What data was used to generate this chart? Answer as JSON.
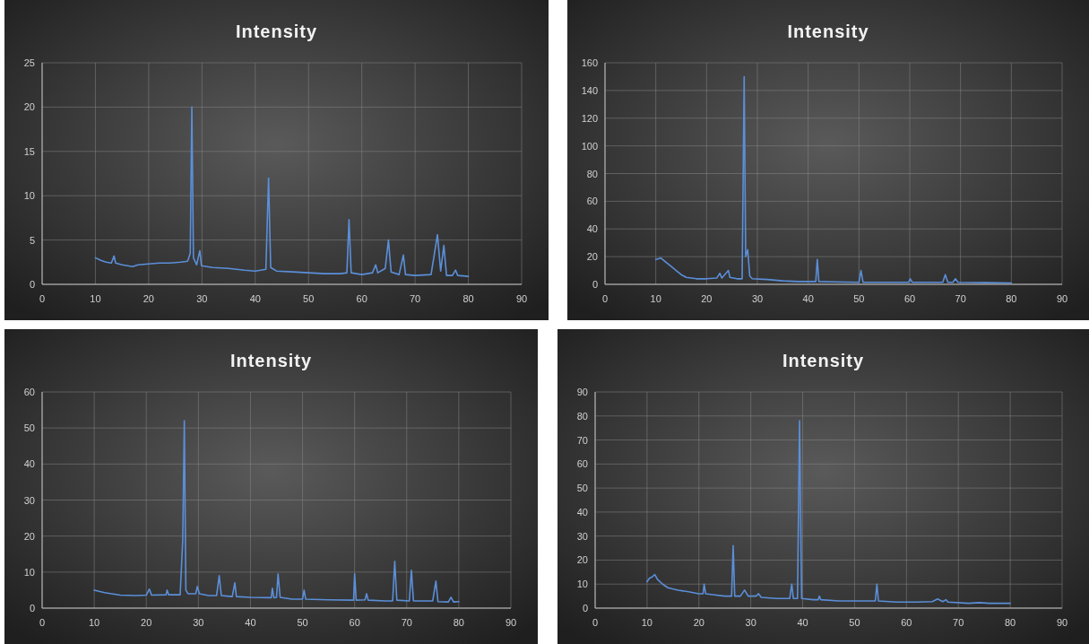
{
  "chart_data": [
    {
      "type": "line",
      "title": "Intensity",
      "xlim": [
        0,
        90
      ],
      "xticks": [
        0,
        10,
        20,
        30,
        40,
        50,
        60,
        70,
        80,
        90
      ],
      "ylim": [
        0,
        25
      ],
      "yticks": [
        0,
        5,
        10,
        15,
        20,
        25
      ],
      "grid": true,
      "marker": "none",
      "line_style": "solid",
      "series": [
        {
          "color": "#5b8fd9",
          "x": [
            10,
            11,
            12,
            13,
            13.5,
            13.8,
            15,
            17,
            18,
            20,
            22,
            24,
            26,
            27.3,
            27.8,
            28.1,
            28.4,
            29,
            29.6,
            29.9,
            32,
            35,
            38,
            40,
            42,
            42.5,
            42.9,
            44,
            47,
            50,
            53,
            56,
            57.2,
            57.6,
            58,
            60,
            62,
            62.6,
            63,
            64.4,
            65,
            65.5,
            67,
            67.8,
            68.2,
            70,
            73,
            74.2,
            74.8,
            75.4,
            75.9,
            77,
            77.6,
            78,
            80
          ],
          "values": [
            3.0,
            2.7,
            2.5,
            2.4,
            3.2,
            2.4,
            2.2,
            2.0,
            2.2,
            2.3,
            2.4,
            2.4,
            2.5,
            2.6,
            3.5,
            20,
            3.0,
            2.2,
            3.8,
            2.1,
            1.9,
            1.8,
            1.6,
            1.5,
            1.7,
            12,
            1.9,
            1.5,
            1.4,
            1.3,
            1.2,
            1.2,
            1.3,
            7.3,
            1.3,
            1.1,
            1.3,
            2.2,
            1.3,
            1.8,
            5.0,
            1.4,
            1.1,
            3.3,
            1.1,
            1.0,
            1.1,
            5.6,
            1.5,
            4.4,
            1.0,
            1.0,
            1.6,
            1.0,
            0.9
          ]
        }
      ]
    },
    {
      "type": "line",
      "title": "Intensity",
      "xlim": [
        0,
        90
      ],
      "xticks": [
        0,
        10,
        20,
        30,
        40,
        50,
        60,
        70,
        80,
        90
      ],
      "ylim": [
        0,
        160
      ],
      "yticks": [
        0,
        20,
        40,
        60,
        80,
        100,
        120,
        140,
        160
      ],
      "grid": true,
      "marker": "none",
      "line_style": "solid",
      "series": [
        {
          "color": "#5b8fd9",
          "x": [
            10,
            11,
            12,
            13,
            14,
            15,
            16,
            18,
            20,
            22,
            22.6,
            23,
            24.3,
            24.6,
            26,
            27,
            27.4,
            27.7,
            28.1,
            28.5,
            29,
            32,
            35,
            38,
            40,
            41.5,
            41.8,
            42.1,
            45,
            50,
            50.4,
            50.8,
            55,
            59.8,
            60.1,
            60.5,
            66.5,
            67,
            67.5,
            68.5,
            69,
            69.5,
            75,
            80
          ],
          "values": [
            18,
            19,
            16,
            13,
            10,
            7,
            5,
            4,
            4,
            4.5,
            8,
            4.5,
            10,
            5,
            4,
            4,
            150,
            20,
            25,
            6,
            4,
            3.5,
            2.5,
            2,
            2,
            2,
            18,
            2,
            1.8,
            1.5,
            10,
            1.5,
            1.5,
            1.5,
            4,
            1.5,
            1.5,
            7,
            1.5,
            1.5,
            4,
            1.5,
            1.2,
            1
          ]
        }
      ]
    },
    {
      "type": "line",
      "title": "Intensity",
      "xlim": [
        0,
        90
      ],
      "xticks": [
        0,
        10,
        20,
        30,
        40,
        50,
        60,
        70,
        80,
        90
      ],
      "ylim": [
        0,
        60
      ],
      "yticks": [
        0,
        10,
        20,
        30,
        40,
        50,
        60
      ],
      "grid": true,
      "marker": "none",
      "line_style": "solid",
      "series": [
        {
          "color": "#5b8fd9",
          "x": [
            10,
            12,
            15,
            18,
            20,
            20.6,
            21,
            23.8,
            24,
            24.3,
            26.5,
            27,
            27.3,
            27.6,
            28,
            29.5,
            29.8,
            30.2,
            32,
            33.5,
            34,
            34.4,
            36.5,
            37,
            37.3,
            40,
            44,
            44.2,
            44.5,
            45,
            45.3,
            45.7,
            48,
            50,
            50.3,
            50.6,
            55,
            59.8,
            60,
            60.3,
            62,
            62.3,
            62.6,
            66,
            67.3,
            67.7,
            68.1,
            70.5,
            70.9,
            71.3,
            75,
            75.6,
            76,
            78,
            78.5,
            79,
            80
          ],
          "values": [
            5,
            4.3,
            3.6,
            3.5,
            3.6,
            5.3,
            3.6,
            3.7,
            5,
            3.7,
            3.7,
            19,
            52,
            5,
            4,
            4,
            6,
            4,
            3.5,
            3.5,
            9,
            3.5,
            3.2,
            7,
            3.2,
            3,
            2.9,
            5.5,
            2.9,
            3,
            9.5,
            3,
            2.5,
            2.5,
            5,
            2.5,
            2.3,
            2.2,
            9.5,
            2.2,
            2.3,
            4,
            2.2,
            2,
            2,
            13,
            2.2,
            2,
            10.5,
            2,
            2,
            7.5,
            1.8,
            1.7,
            3,
            1.7,
            1.8
          ]
        }
      ]
    },
    {
      "type": "line",
      "title": "Intensity",
      "xlim": [
        0,
        90
      ],
      "xticks": [
        0,
        10,
        20,
        30,
        40,
        50,
        60,
        70,
        80,
        90
      ],
      "ylim": [
        0,
        90
      ],
      "yticks": [
        0,
        10,
        20,
        30,
        40,
        50,
        60,
        70,
        80,
        90
      ],
      "grid": true,
      "marker": "none",
      "line_style": "solid",
      "series": [
        {
          "color": "#5b8fd9",
          "x": [
            10,
            10.5,
            11,
            11.5,
            12,
            13,
            14,
            16,
            18,
            20,
            20.8,
            21,
            21.3,
            23,
            25,
            26.3,
            26.6,
            26.9,
            28,
            28.8,
            29.5,
            31,
            31.5,
            32,
            35,
            37.5,
            37.9,
            38.2,
            39,
            39.4,
            39.8,
            42,
            43,
            43.2,
            43.5,
            47,
            50,
            54,
            54.3,
            54.6,
            58,
            62,
            65,
            66,
            67,
            67.6,
            68,
            72,
            74,
            76,
            80
          ],
          "values": [
            11,
            12.5,
            13,
            14,
            12,
            10,
            8.5,
            7.5,
            6.8,
            6,
            6,
            10,
            6,
            5.5,
            5,
            5,
            26,
            5,
            5,
            7.5,
            5,
            5,
            6,
            4.5,
            4,
            4,
            10,
            4,
            4,
            78,
            4,
            3.5,
            3.5,
            5,
            3.5,
            3,
            3,
            3,
            10,
            3,
            2.5,
            2.5,
            2.7,
            3.8,
            2.7,
            3.5,
            2.5,
            2,
            2.3,
            2,
            2
          ]
        }
      ]
    }
  ]
}
